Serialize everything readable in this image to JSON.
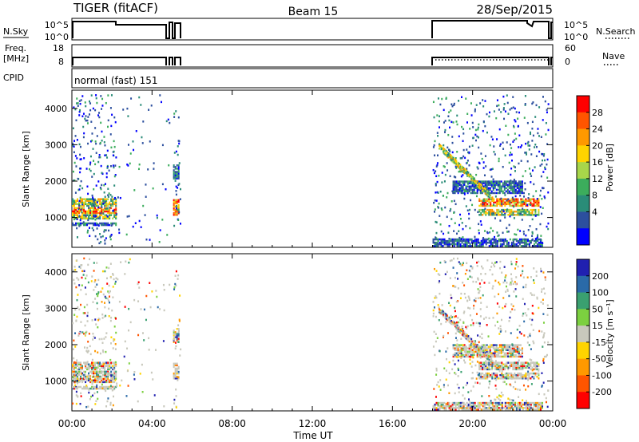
{
  "header": {
    "radar": "TIGER (fitACF)",
    "beam": "Beam 15",
    "date": "28/Sep/2015"
  },
  "top_panels": {
    "nsky": {
      "label": "N.Sky",
      "ticks": [
        "10^5",
        "10^0"
      ],
      "right_label": "N.Search",
      "right_ticks": [
        "10^5",
        "10^0"
      ]
    },
    "freq": {
      "label_lines": [
        "Freq.",
        "[MHz]"
      ],
      "ticks": [
        "18",
        "8"
      ],
      "right_label": "Nave",
      "right_ticks": [
        "60",
        "0"
      ]
    },
    "cpid": {
      "label": "CPID",
      "mode_text": "normal (fast) 151"
    }
  },
  "x_axis": {
    "label": "Time UT",
    "ticks": [
      "00:00",
      "04:00",
      "08:00",
      "12:00",
      "16:00",
      "20:00",
      "00:00"
    ],
    "tick_hours": [
      0,
      4,
      8,
      12,
      16,
      20,
      24
    ],
    "range_hours": [
      0,
      24
    ]
  },
  "panels": [
    {
      "id": "power",
      "ylabel": "Slant Range [km]",
      "yticks": [
        "4000",
        "3000",
        "2000",
        "1000"
      ],
      "ytick_values": [
        4000,
        3000,
        2000,
        1000
      ],
      "yrange_km": [
        180,
        4500
      ],
      "colorbar_label": "Power [dB]",
      "colorbar_ticks": [
        "28",
        "24",
        "20",
        "16",
        "12",
        "8",
        "4"
      ],
      "colorbar_colors": [
        "#ff0000",
        "#ff5500",
        "#ff9900",
        "#ffd400",
        "#a8d64a",
        "#3cad5c",
        "#2a8c78",
        "#2c4f9e",
        "#0000ff"
      ]
    },
    {
      "id": "velocity",
      "ylabel": "Slant Range [km]",
      "yticks": [
        "4000",
        "3000",
        "2000",
        "1000"
      ],
      "ytick_values": [
        4000,
        3000,
        2000,
        1000
      ],
      "yrange_km": [
        180,
        4500
      ],
      "colorbar_label": "Velocity [m s⁻¹]",
      "colorbar_ticks": [
        "200",
        "100",
        "50",
        "15",
        "-15",
        "-50",
        "-100",
        "-200"
      ],
      "colorbar_colors": [
        "#2020b0",
        "#2a6aa8",
        "#3aa070",
        "#7cd040",
        "#c8c8bc",
        "#ffd400",
        "#ff9900",
        "#ff5500",
        "#ff0000"
      ]
    }
  ],
  "chart_data": {
    "type": "heatmap",
    "data_windows_hours": [
      [
        0.0,
        2.2
      ],
      [
        2.2,
        4.85
      ],
      [
        5.05,
        5.4
      ],
      [
        18.0,
        23.75
      ]
    ],
    "power_bands": [
      {
        "t": [
          0.0,
          2.2
        ],
        "range_km": [
          1350,
          1550
        ],
        "level": "mid"
      },
      {
        "t": [
          0.0,
          2.2
        ],
        "range_km": [
          1150,
          1320
        ],
        "level": "high"
      },
      {
        "t": [
          0.0,
          2.2
        ],
        "range_km": [
          1000,
          1120
        ],
        "level": "mid"
      },
      {
        "t": [
          0.0,
          2.2
        ],
        "range_km": [
          820,
          900
        ],
        "level": "low"
      },
      {
        "t": [
          5.05,
          5.35
        ],
        "range_km": [
          1100,
          1550
        ],
        "level": "high"
      },
      {
        "t": [
          5.05,
          5.35
        ],
        "range_km": [
          2100,
          2500
        ],
        "level": "low"
      },
      {
        "t": [
          20.3,
          23.3
        ],
        "range_km": [
          1350,
          1550
        ],
        "level": "high"
      },
      {
        "t": [
          20.3,
          23.3
        ],
        "range_km": [
          1100,
          1250
        ],
        "level": "mid"
      },
      {
        "t": [
          19.0,
          22.5
        ],
        "range_km": [
          1700,
          2050
        ],
        "level": "low"
      },
      {
        "t": [
          18.0,
          23.5
        ],
        "range_km": [
          200,
          450
        ],
        "level": "low"
      }
    ]
  }
}
